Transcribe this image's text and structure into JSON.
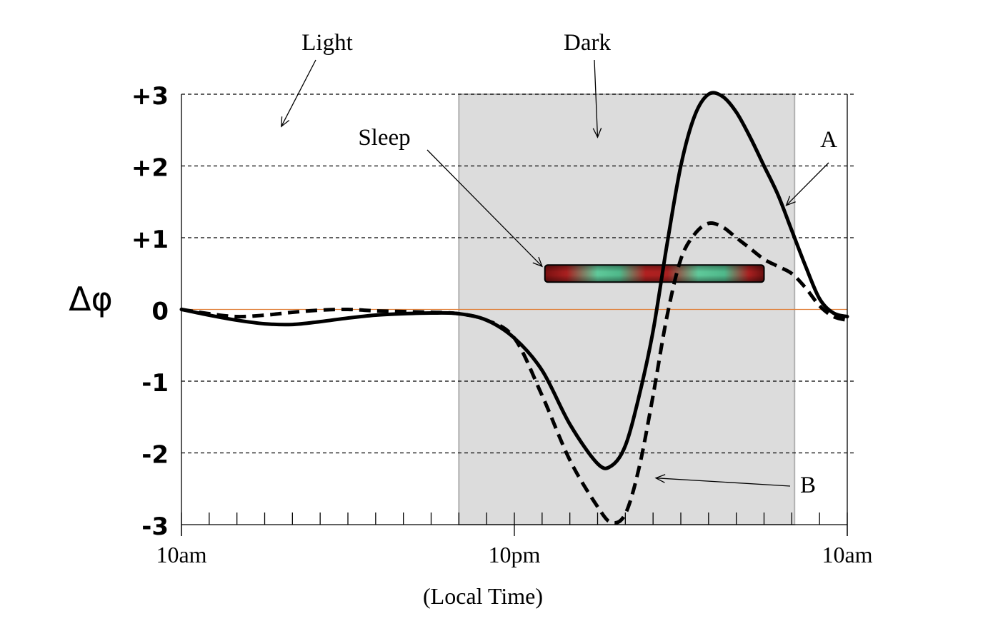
{
  "chart_data": {
    "type": "line",
    "xlabel": "(Local Time)",
    "ylabel": "Δφ",
    "xlim": [
      0,
      24
    ],
    "ylim": [
      -3,
      3
    ],
    "x_tick_labels": [
      {
        "x": 0,
        "label": "10am"
      },
      {
        "x": 12,
        "label": "10pm"
      },
      {
        "x": 24,
        "label": "10am"
      }
    ],
    "minor_tick_step_hours": 1,
    "y_tick_labels": [
      {
        "y": 3,
        "label": "+3"
      },
      {
        "y": 2,
        "label": "+2"
      },
      {
        "y": 1,
        "label": "+1"
      },
      {
        "y": 0,
        "label": "0"
      },
      {
        "y": -1,
        "label": "-1"
      },
      {
        "y": -2,
        "label": "-2"
      },
      {
        "y": -3,
        "label": "-3"
      }
    ],
    "dashed_gridlines_y": [
      3,
      2,
      1,
      -1,
      -2
    ],
    "zero_line_color": "#e0803a",
    "dark_period": {
      "x_start": 10.0,
      "x_end": 22.1,
      "color": "#dcdcdc",
      "label": "Dark"
    },
    "light_label": "Light",
    "sleep_bar": {
      "x_start": 13.1,
      "x_end": 21.0,
      "y": 0.5,
      "label": "Sleep"
    },
    "series": [
      {
        "name": "A",
        "style": "solid",
        "x": [
          0,
          1,
          2,
          3,
          4,
          5,
          6,
          7,
          8,
          9,
          10,
          11,
          12,
          13,
          14,
          15,
          15.5,
          16,
          16.5,
          17,
          17.5,
          18,
          18.5,
          19,
          19.5,
          20,
          20.5,
          21,
          21.5,
          22,
          22.5,
          23,
          23.5,
          24
        ],
        "y": [
          0,
          -0.08,
          -0.15,
          -0.2,
          -0.21,
          -0.17,
          -0.12,
          -0.08,
          -0.06,
          -0.05,
          -0.06,
          -0.15,
          -0.4,
          -0.85,
          -1.6,
          -2.15,
          -2.18,
          -1.9,
          -1.2,
          -0.3,
          0.9,
          2.0,
          2.7,
          3.0,
          2.97,
          2.75,
          2.4,
          2.0,
          1.6,
          1.1,
          0.6,
          0.15,
          -0.05,
          -0.1
        ]
      },
      {
        "name": "B",
        "style": "dashed",
        "x": [
          0,
          1,
          2,
          3,
          4,
          5,
          6,
          7,
          8,
          9,
          10,
          11,
          12,
          13,
          14,
          15,
          15.5,
          16,
          16.5,
          17,
          17.5,
          18,
          18.5,
          19,
          19.5,
          20,
          20.5,
          21,
          21.5,
          22,
          22.5,
          23,
          23.5,
          24
        ],
        "y": [
          0,
          -0.06,
          -0.1,
          -0.08,
          -0.04,
          -0.01,
          0,
          -0.02,
          -0.03,
          -0.04,
          -0.06,
          -0.15,
          -0.4,
          -1.2,
          -2.1,
          -2.75,
          -2.97,
          -2.85,
          -2.2,
          -1.2,
          -0.1,
          0.7,
          1.05,
          1.2,
          1.15,
          1.0,
          0.85,
          0.7,
          0.6,
          0.5,
          0.3,
          0.05,
          -0.1,
          -0.15
        ]
      }
    ],
    "annotations": [
      {
        "text": "Light",
        "arrow_to_x": 3.6,
        "arrow_to_y": 2.55
      },
      {
        "text": "Dark",
        "arrow_to_x": 15.0,
        "arrow_to_y": 2.4
      },
      {
        "text": "Sleep",
        "arrow_to_x": 13.0,
        "arrow_to_y": 0.6
      },
      {
        "text": "A",
        "arrow_to_x": 21.8,
        "arrow_to_y": 1.45
      },
      {
        "text": "B",
        "arrow_to_x": 17.1,
        "arrow_to_y": -2.35
      }
    ]
  }
}
